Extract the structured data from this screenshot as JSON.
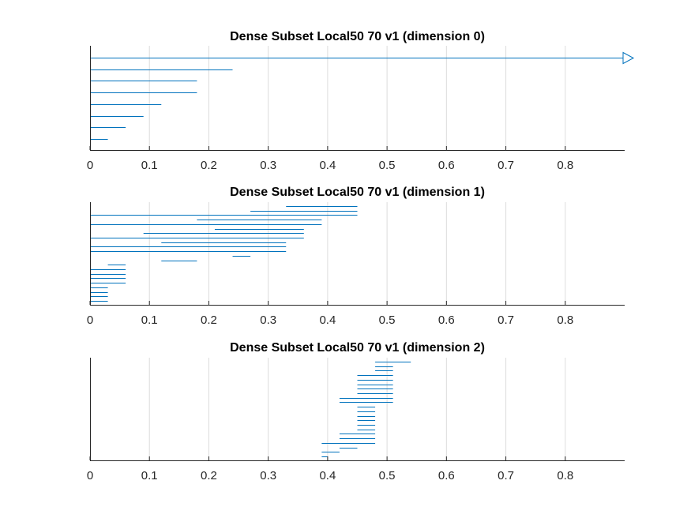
{
  "chart_data": [
    {
      "type": "barcode",
      "title": "Dense Subset Local50 70 v1 (dimension 0)",
      "xlim": [
        0,
        0.9
      ],
      "xticks": [
        "0",
        "0.1",
        "0.2",
        "0.3",
        "0.4",
        "0.5",
        "0.6",
        "0.7",
        "0.8"
      ],
      "grid": true,
      "color": "#0072BD",
      "intervals": [
        [
          0,
          null
        ],
        [
          0,
          0.24
        ],
        [
          0,
          0.18
        ],
        [
          0,
          0.18
        ],
        [
          0,
          0.12
        ],
        [
          0,
          0.09
        ],
        [
          0,
          0.06
        ],
        [
          0,
          0.03
        ]
      ]
    },
    {
      "type": "barcode",
      "title": "Dense Subset Local50 70 v1 (dimension 1)",
      "xlim": [
        0,
        0.9
      ],
      "xticks": [
        "0",
        "0.1",
        "0.2",
        "0.3",
        "0.4",
        "0.5",
        "0.6",
        "0.7",
        "0.8"
      ],
      "grid": true,
      "color": "#0072BD",
      "intervals": [
        [
          0.33,
          0.45
        ],
        [
          0.27,
          0.45
        ],
        [
          0,
          0.45
        ],
        [
          0.18,
          0.39
        ],
        [
          0,
          0.39
        ],
        [
          0.21,
          0.36
        ],
        [
          0.09,
          0.36
        ],
        [
          0,
          0.36
        ],
        [
          0.12,
          0.33
        ],
        [
          0,
          0.33
        ],
        [
          0,
          0.33
        ],
        [
          0.24,
          0.27
        ],
        [
          0.12,
          0.18
        ],
        [
          0.03,
          0.06
        ],
        [
          0,
          0.06
        ],
        [
          0,
          0.06
        ],
        [
          0,
          0.06
        ],
        [
          0,
          0.06
        ],
        [
          0,
          0.03
        ],
        [
          0,
          0.03
        ],
        [
          0,
          0.03
        ],
        [
          0,
          0.03
        ]
      ]
    },
    {
      "type": "barcode",
      "title": "Dense Subset Local50 70 v1 (dimension 2)",
      "xlim": [
        0,
        0.9
      ],
      "xticks": [
        "0",
        "0.1",
        "0.2",
        "0.3",
        "0.4",
        "0.5",
        "0.6",
        "0.7",
        "0.8"
      ],
      "grid": true,
      "color": "#0072BD",
      "intervals": [
        [
          0.48,
          0.54
        ],
        [
          0.48,
          0.51
        ],
        [
          0.48,
          0.51
        ],
        [
          0.45,
          0.51
        ],
        [
          0.45,
          0.51
        ],
        [
          0.45,
          0.51
        ],
        [
          0.45,
          0.51
        ],
        [
          0.45,
          0.51
        ],
        [
          0.42,
          0.51
        ],
        [
          0.42,
          0.51
        ],
        [
          0.45,
          0.48
        ],
        [
          0.45,
          0.48
        ],
        [
          0.45,
          0.48
        ],
        [
          0.45,
          0.48
        ],
        [
          0.45,
          0.48
        ],
        [
          0.45,
          0.48
        ],
        [
          0.42,
          0.48
        ],
        [
          0.42,
          0.48
        ],
        [
          0.39,
          0.48
        ],
        [
          0.42,
          0.45
        ],
        [
          0.39,
          0.42
        ],
        [
          0.39,
          0.4
        ]
      ]
    }
  ]
}
